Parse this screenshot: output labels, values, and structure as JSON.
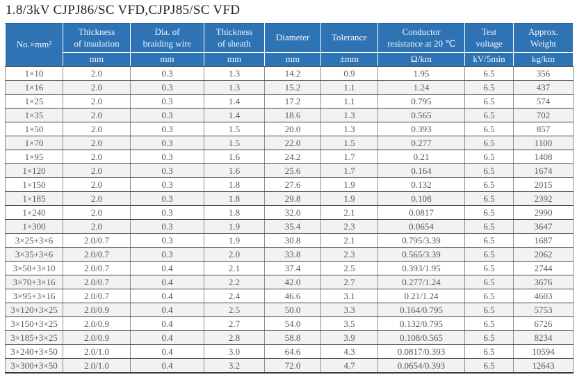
{
  "title": "1.8/3kV CJPJ86/SC VFD,CJPJ85/SC VFD",
  "colors": {
    "header_bg": "#2e74b5",
    "header_text": "#f4f6f9",
    "stripe_bg": "#f2f2f2",
    "data_text": "#595959"
  },
  "table": {
    "corner_header": "No.×mm²",
    "columns": [
      {
        "label": "Thickness\nof insulation",
        "unit": "mm"
      },
      {
        "label": "Dia. of\nbraiding wire",
        "unit": "mm"
      },
      {
        "label": "Thickness\nof sheath",
        "unit": "mm"
      },
      {
        "label": "Diameter",
        "unit": "mm"
      },
      {
        "label": "Tolerance",
        "unit": "±mm"
      },
      {
        "label": "Conductor\nresistance at 20 ℃",
        "unit": "Ω/km"
      },
      {
        "label": "Test\nvoltage",
        "unit": "kV/5min"
      },
      {
        "label": "Approx.\nWeight",
        "unit": "kg/km"
      }
    ],
    "rows": [
      [
        "1×10",
        "2.0",
        "0.3",
        "1.3",
        "14.2",
        "0.9",
        "1.95",
        "6.5",
        "356"
      ],
      [
        "1×16",
        "2.0",
        "0.3",
        "1.3",
        "15.2",
        "1.1",
        "1.24",
        "6.5",
        "437"
      ],
      [
        "1×25",
        "2.0",
        "0.3",
        "1.4",
        "17.2",
        "1.1",
        "0.795",
        "6.5",
        "574"
      ],
      [
        "1×35",
        "2.0",
        "0.3",
        "1.4",
        "18.6",
        "1.3",
        "0.565",
        "6.5",
        "702"
      ],
      [
        "1×50",
        "2.0",
        "0.3",
        "1.5",
        "20.0",
        "1.3",
        "0.393",
        "6.5",
        "857"
      ],
      [
        "1×70",
        "2.0",
        "0.3",
        "1.5",
        "22.0",
        "1.5",
        "0.277",
        "6.5",
        "1100"
      ],
      [
        "1×95",
        "2.0",
        "0.3",
        "1.6",
        "24.2",
        "1.7",
        "0.21",
        "6.5",
        "1408"
      ],
      [
        "1×120",
        "2.0",
        "0.3",
        "1.6",
        "25.6",
        "1.7",
        "0.164",
        "6.5",
        "1674"
      ],
      [
        "1×150",
        "2.0",
        "0.3",
        "1.8",
        "27.6",
        "1.9",
        "0.132",
        "6.5",
        "2015"
      ],
      [
        "1×185",
        "2.0",
        "0.3",
        "1.8",
        "29.8",
        "1.9",
        "0.108",
        "6.5",
        "2392"
      ],
      [
        "1×240",
        "2.0",
        "0.3",
        "1.8",
        "32.0",
        "2.1",
        "0.0817",
        "6.5",
        "2990"
      ],
      [
        "1×300",
        "2.0",
        "0.3",
        "1.9",
        "35.4",
        "2.3",
        "0.0654",
        "6.5",
        "3647"
      ],
      [
        "3×25+3×6",
        "2.0/0.7",
        "0.3",
        "1.9",
        "30.8",
        "2.1",
        "0.795/3.39",
        "6.5",
        "1687"
      ],
      [
        "3×35+3×6",
        "2.0/0.7",
        "0.3",
        "2.0",
        "33.8",
        "2.3",
        "0.565/3.39",
        "6.5",
        "2062"
      ],
      [
        "3×50+3×10",
        "2.0/0.7",
        "0.4",
        "2.1",
        "37.4",
        "2.5",
        "0.393/1.95",
        "6.5",
        "2744"
      ],
      [
        "3×70+3×16",
        "2.0/0.7",
        "0.4",
        "2.2",
        "42.0",
        "2.7",
        "0.277/1.24",
        "6.5",
        "3676"
      ],
      [
        "3×95+3×16",
        "2.0/0.7",
        "0.4",
        "2.4",
        "46.6",
        "3.1",
        "0.21/1.24",
        "6.5",
        "4603"
      ],
      [
        "3×120+3×25",
        "2.0/0.9",
        "0.4",
        "2.5",
        "50.0",
        "3.3",
        "0.164/0.795",
        "6.5",
        "5753"
      ],
      [
        "3×150+3×25",
        "2.0/0.9",
        "0.4",
        "2.7",
        "54.0",
        "3.5",
        "0.132/0.795",
        "6.5",
        "6726"
      ],
      [
        "3×185+3×25",
        "2.0/0.9",
        "0.4",
        "2.8",
        "58.8",
        "3.9",
        "0.108/0.565",
        "6.5",
        "8234"
      ],
      [
        "3×240+3×50",
        "2.0/1.0",
        "0.4",
        "3.0",
        "64.6",
        "4.3",
        "0.0817/0.393",
        "6.5",
        "10594"
      ],
      [
        "3×300+3×50",
        "2.0/1.0",
        "0.4",
        "3.2",
        "72.0",
        "4.7",
        "0.0654/0.393",
        "6.5",
        "12643"
      ]
    ]
  }
}
